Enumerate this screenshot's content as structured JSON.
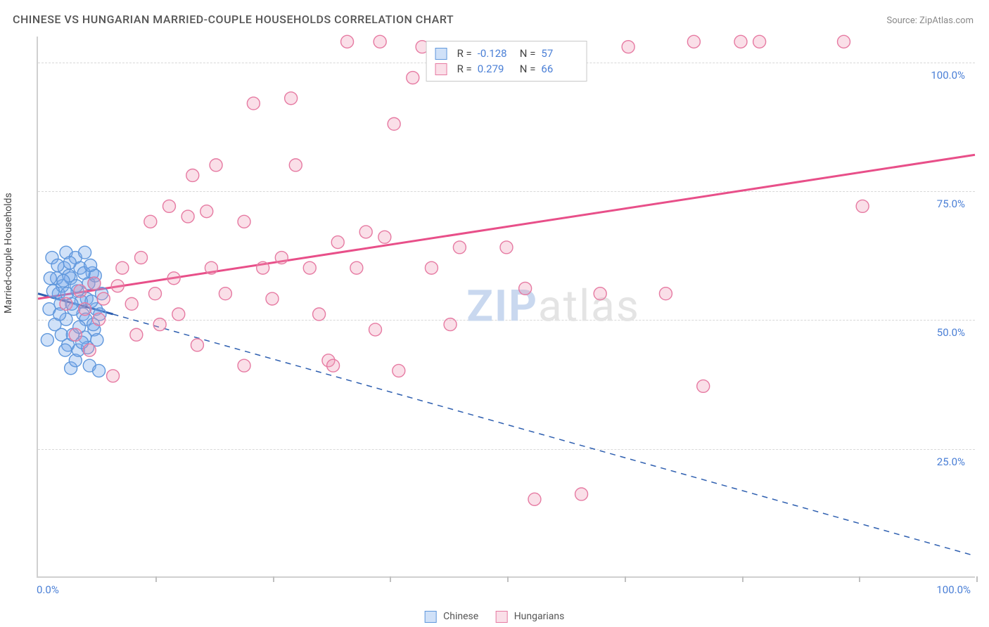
{
  "title": "CHINESE VS HUNGARIAN MARRIED-COUPLE HOUSEHOLDS CORRELATION CHART",
  "source": "Source: ZipAtlas.com",
  "watermark_a": "ZIP",
  "watermark_b": "atlas",
  "ylabel": "Married-couple Households",
  "chart": {
    "type": "scatter",
    "xlim": [
      0,
      100
    ],
    "ylim": [
      0,
      105
    ],
    "xtick_positions": [
      12.5,
      25,
      37.5,
      50,
      62.5,
      75,
      87.5,
      100
    ],
    "ytick_labels": [
      "25.0%",
      "50.0%",
      "75.0%",
      "100.0%"
    ],
    "ytick_values": [
      25,
      50,
      75,
      100
    ],
    "x_origin_label": "0.0%",
    "x_max_label": "100.0%",
    "grid_color": "#d8d8d8",
    "background_color": "#ffffff",
    "title_fontsize": 16,
    "label_fontsize": 14,
    "tick_fontsize": 15,
    "marker_radius": 9,
    "marker_stroke_width": 1.4,
    "line_width": 3
  },
  "series": [
    {
      "name": "Chinese",
      "color_fill": "rgba(120,170,235,0.35)",
      "color_stroke": "#5f97dc",
      "color_line": "#2e5fb0",
      "R": "-0.128",
      "N": "57",
      "regression": {
        "x1": 0,
        "y1": 55,
        "x2_solid": 8,
        "y2_solid": 51,
        "x2_dash": 100,
        "y2_dash": 4
      },
      "points": [
        [
          1,
          46
        ],
        [
          1.5,
          62
        ],
        [
          2,
          58
        ],
        [
          2.2,
          55
        ],
        [
          2.5,
          47
        ],
        [
          2.8,
          60
        ],
        [
          3,
          63
        ],
        [
          3,
          50
        ],
        [
          3.2,
          45
        ],
        [
          3.5,
          40.5
        ],
        [
          3.5,
          58
        ],
        [
          4,
          62
        ],
        [
          4,
          42
        ],
        [
          4.2,
          55.5
        ],
        [
          4.5,
          60
        ],
        [
          4.8,
          51
        ],
        [
          5,
          63
        ],
        [
          5,
          46.5
        ],
        [
          5.2,
          54
        ],
        [
          5.5,
          41
        ],
        [
          5.8,
          59
        ],
        [
          6,
          57
        ],
        [
          6,
          48
        ],
        [
          6.2,
          52
        ],
        [
          6.5,
          40
        ],
        [
          4.3,
          44
        ],
        [
          6.8,
          55
        ],
        [
          2.4,
          53
        ],
        [
          1.8,
          49
        ],
        [
          2.6,
          56.5
        ],
        [
          3.3,
          58.5
        ],
        [
          4.6,
          53.5
        ],
        [
          5.4,
          57
        ],
        [
          3.7,
          47
        ],
        [
          2.1,
          60.5
        ],
        [
          1.2,
          52
        ],
        [
          5.1,
          50
        ],
        [
          6.3,
          46
        ],
        [
          4.9,
          59
        ],
        [
          3.8,
          52
        ],
        [
          2.9,
          44
        ],
        [
          5.7,
          53.5
        ],
        [
          1.6,
          55.5
        ],
        [
          6.6,
          51
        ],
        [
          4.1,
          56.5
        ],
        [
          3.1,
          55
        ],
        [
          5.3,
          44.5
        ],
        [
          2.3,
          51
        ],
        [
          4.4,
          48.5
        ],
        [
          6.1,
          58.5
        ],
        [
          3.6,
          53
        ],
        [
          5.6,
          60.5
        ],
        [
          1.3,
          58
        ],
        [
          4.7,
          45.5
        ],
        [
          2.7,
          57.5
        ],
        [
          5.9,
          49
        ],
        [
          3.4,
          61
        ]
      ]
    },
    {
      "name": "Hungarians",
      "color_fill": "rgba(240,150,180,0.30)",
      "color_stroke": "#e67aa2",
      "color_line": "#e84f89",
      "R": "0.279",
      "N": "66",
      "regression": {
        "x1": 0,
        "y1": 54,
        "x2_solid": 100,
        "y2_solid": 82,
        "x2_dash": 100,
        "y2_dash": 82
      },
      "points": [
        [
          3,
          53
        ],
        [
          4,
          47
        ],
        [
          4.5,
          55.5
        ],
        [
          5,
          52
        ],
        [
          5.5,
          44
        ],
        [
          6,
          57
        ],
        [
          6.5,
          50
        ],
        [
          7,
          54
        ],
        [
          8,
          39
        ],
        [
          8.5,
          56.5
        ],
        [
          9,
          60
        ],
        [
          10,
          53
        ],
        [
          10.5,
          47
        ],
        [
          11,
          62
        ],
        [
          12,
          69
        ],
        [
          12.5,
          55
        ],
        [
          13,
          49
        ],
        [
          14,
          72
        ],
        [
          14.5,
          58
        ],
        [
          15,
          51
        ],
        [
          16,
          70
        ],
        [
          16.5,
          78
        ],
        [
          17,
          45
        ],
        [
          18,
          71
        ],
        [
          18.5,
          60
        ],
        [
          19,
          80
        ],
        [
          20,
          55
        ],
        [
          22,
          41
        ],
        [
          22,
          69
        ],
        [
          23,
          92
        ],
        [
          24,
          60
        ],
        [
          25,
          54
        ],
        [
          26,
          62
        ],
        [
          27,
          93
        ],
        [
          27.5,
          80
        ],
        [
          29,
          60
        ],
        [
          30,
          51
        ],
        [
          31,
          42
        ],
        [
          31.5,
          41
        ],
        [
          32,
          65
        ],
        [
          33,
          104
        ],
        [
          34,
          60
        ],
        [
          35,
          67
        ],
        [
          36,
          48
        ],
        [
          36.5,
          104
        ],
        [
          37,
          66
        ],
        [
          38,
          88
        ],
        [
          38.5,
          40
        ],
        [
          40,
          97
        ],
        [
          41,
          103
        ],
        [
          42,
          60
        ],
        [
          44,
          49
        ],
        [
          45,
          64
        ],
        [
          50,
          64
        ],
        [
          52,
          56
        ],
        [
          53,
          15
        ],
        [
          58,
          16
        ],
        [
          60,
          55
        ],
        [
          63,
          103
        ],
        [
          67,
          55
        ],
        [
          70,
          104
        ],
        [
          71,
          37
        ],
        [
          75,
          104
        ],
        [
          77,
          104
        ],
        [
          86,
          104
        ],
        [
          88,
          72
        ]
      ]
    }
  ],
  "legend": {
    "series1_label": "Chinese",
    "series2_label": "Hungarians"
  },
  "stats_box": {
    "rows": [
      {
        "r_label": "R =",
        "r_val": "-0.128",
        "n_label": "N =",
        "n_val": "57"
      },
      {
        "r_label": "R =",
        "r_val": "0.279",
        "n_label": "N =",
        "n_val": "66"
      }
    ]
  }
}
